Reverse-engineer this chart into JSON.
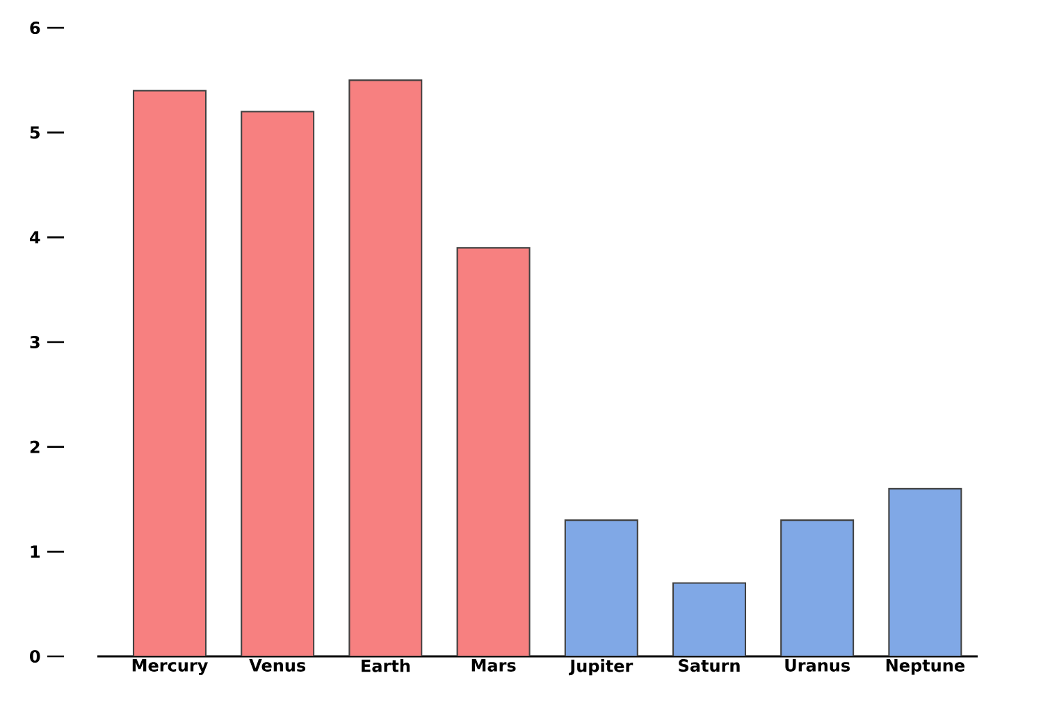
{
  "chart_data": {
    "type": "bar",
    "categories": [
      "Mercury",
      "Venus",
      "Earth",
      "Mars",
      "Jupiter",
      "Saturn",
      "Uranus",
      "Neptune"
    ],
    "values": [
      5.4,
      5.2,
      5.5,
      3.9,
      1.3,
      0.7,
      1.3,
      1.6
    ],
    "colors": [
      "#f78080",
      "#f78080",
      "#f78080",
      "#f78080",
      "#80a8e6",
      "#80a8e6",
      "#80a8e6",
      "#80a8e6"
    ],
    "ylim": [
      0,
      6
    ],
    "yticks": [
      0,
      1,
      2,
      3,
      4,
      5,
      6
    ]
  }
}
